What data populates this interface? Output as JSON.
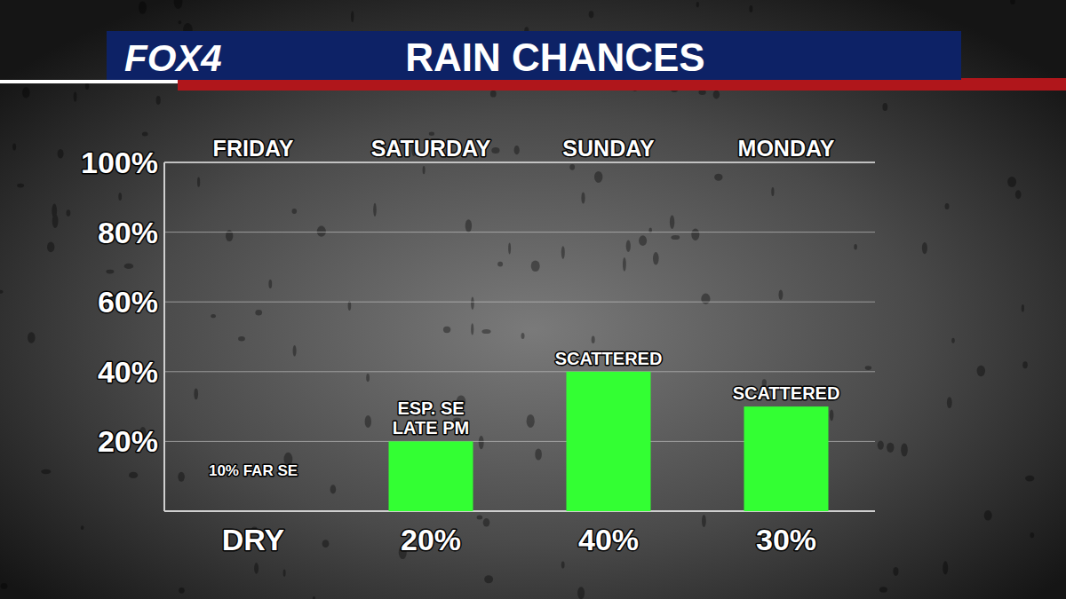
{
  "chart_data": {
    "type": "bar",
    "logo": "FOX4",
    "title": "RAIN CHANCES",
    "categories": [
      "FRIDAY",
      "SATURDAY",
      "SUNDAY",
      "MONDAY"
    ],
    "values": [
      0,
      20,
      40,
      30
    ],
    "value_labels": [
      "DRY",
      "20%",
      "40%",
      "30%"
    ],
    "annotations": [
      "10% FAR SE",
      "ESP. SE\nLATE PM",
      "SCATTERED",
      "SCATTERED"
    ],
    "color": "#33ff33",
    "ylim": [
      0,
      100
    ],
    "yticks": [
      {
        "value": 20,
        "label": "20%"
      },
      {
        "value": 40,
        "label": "40%"
      },
      {
        "value": 60,
        "label": "60%"
      },
      {
        "value": 80,
        "label": "80%"
      },
      {
        "value": 100,
        "label": "100%"
      }
    ],
    "grid": true,
    "data_labels": true
  }
}
